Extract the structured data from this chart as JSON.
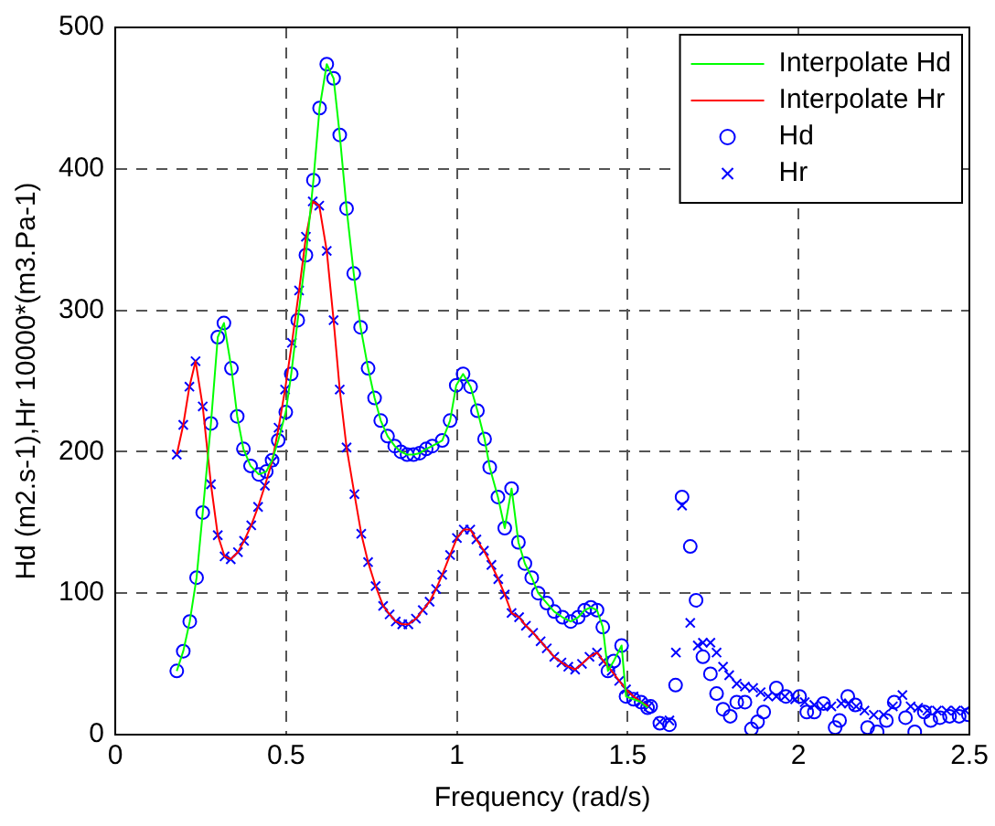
{
  "chart_data": {
    "type": "scatter",
    "xlabel": "Frequency (rad/s)",
    "ylabel": "Hd (m2.s-1),Hr 10000*(m3.Pa-1)",
    "xlim": [
      0,
      2.5
    ],
    "ylim": [
      0,
      500
    ],
    "xticks": [
      0,
      0.5,
      1,
      1.5,
      2,
      2.5
    ],
    "yticks": [
      0,
      100,
      200,
      300,
      400,
      500
    ],
    "grid": true,
    "legend": "top right",
    "series": [
      {
        "name": "Interpolate Hd",
        "type": "line",
        "marker": "none",
        "color": "#00ff00",
        "x": [
          0.18,
          0.199,
          0.218,
          0.238,
          0.256,
          0.28,
          0.3,
          0.318,
          0.34,
          0.357,
          0.375,
          0.396,
          0.42,
          0.442,
          0.459,
          0.477,
          0.499,
          0.515,
          0.534,
          0.558,
          0.58,
          0.598,
          0.619,
          0.639,
          0.657,
          0.677,
          0.698,
          0.718,
          0.74,
          0.759,
          0.777,
          0.797,
          0.818,
          0.836,
          0.854,
          0.873,
          0.891,
          0.91,
          0.928,
          0.957,
          0.98,
          0.998,
          1.018,
          1.04,
          1.06,
          1.081,
          1.096,
          1.12,
          1.14,
          1.16,
          1.18,
          1.199,
          1.219,
          1.238,
          1.263,
          1.285,
          1.309,
          1.333,
          1.355,
          1.374,
          1.392,
          1.41,
          1.427,
          1.442,
          1.459,
          1.482,
          1.495,
          1.517,
          1.539,
          1.558
        ],
        "values": [
          45,
          59,
          80,
          111,
          157,
          220,
          281,
          291,
          259,
          225,
          202,
          190,
          184,
          186,
          194,
          208,
          228,
          255,
          293,
          339,
          392,
          443,
          474,
          464,
          424,
          372,
          326,
          288,
          259,
          238,
          222,
          211,
          204,
          200,
          198,
          198,
          199,
          202,
          204,
          208,
          222,
          247,
          255,
          246,
          229,
          209,
          189,
          168,
          146,
          174,
          136,
          121,
          111,
          100,
          93,
          87,
          83,
          80,
          83,
          88,
          90,
          88,
          76,
          45,
          52,
          63,
          27,
          25,
          23,
          19
        ]
      },
      {
        "name": "Interpolate Hr",
        "type": "line",
        "marker": "none",
        "color": "#ff0000",
        "x": [
          0.18,
          0.199,
          0.217,
          0.235,
          0.256,
          0.28,
          0.3,
          0.32,
          0.338,
          0.359,
          0.377,
          0.398,
          0.418,
          0.438,
          0.459,
          0.478,
          0.497,
          0.517,
          0.538,
          0.558,
          0.578,
          0.597,
          0.619,
          0.639,
          0.657,
          0.677,
          0.7,
          0.72,
          0.74,
          0.762,
          0.784,
          0.803,
          0.821,
          0.84,
          0.858,
          0.88,
          0.9,
          0.92,
          0.939,
          0.957,
          0.98,
          1.0,
          1.02,
          1.039,
          1.057,
          1.079,
          1.101,
          1.121,
          1.14,
          1.16,
          1.182,
          1.202,
          1.223,
          1.245,
          1.263,
          1.285,
          1.306,
          1.326,
          1.346,
          1.366,
          1.388,
          1.41,
          1.429,
          1.453,
          1.475,
          1.495,
          1.517,
          1.539,
          1.561
        ],
        "values": [
          198,
          219,
          246,
          264,
          232,
          177,
          141,
          126,
          124,
          129,
          137,
          148,
          161,
          176,
          193,
          217,
          244,
          277,
          314,
          352,
          377,
          374,
          342,
          293,
          244,
          203,
          170,
          142,
          122,
          105,
          91,
          85,
          80,
          78,
          78,
          82,
          88,
          94,
          103,
          113,
          127,
          139,
          145,
          145,
          138,
          130,
          120,
          110,
          99,
          86,
          83,
          77,
          72,
          66,
          61,
          55,
          51,
          48,
          46,
          50,
          55,
          58,
          52,
          45,
          38,
          32,
          27,
          23,
          20
        ]
      },
      {
        "name": "Hd",
        "type": "scatter",
        "marker": "circle",
        "color": "#0000ff",
        "x": [
          0.18,
          0.199,
          0.218,
          0.238,
          0.256,
          0.28,
          0.3,
          0.318,
          0.34,
          0.357,
          0.375,
          0.396,
          0.42,
          0.442,
          0.459,
          0.477,
          0.499,
          0.515,
          0.534,
          0.558,
          0.58,
          0.598,
          0.619,
          0.639,
          0.657,
          0.677,
          0.698,
          0.718,
          0.74,
          0.759,
          0.777,
          0.797,
          0.818,
          0.836,
          0.854,
          0.873,
          0.891,
          0.91,
          0.928,
          0.957,
          0.98,
          0.998,
          1.018,
          1.04,
          1.06,
          1.081,
          1.096,
          1.12,
          1.14,
          1.16,
          1.18,
          1.199,
          1.219,
          1.238,
          1.263,
          1.285,
          1.309,
          1.333,
          1.355,
          1.374,
          1.392,
          1.41,
          1.427,
          1.442,
          1.459,
          1.482,
          1.495,
          1.517,
          1.539,
          1.558,
          1.567,
          1.594,
          1.622,
          1.64,
          1.659,
          1.683,
          1.7,
          1.72,
          1.742,
          1.76,
          1.779,
          1.8,
          1.819,
          1.843,
          1.862,
          1.88,
          1.898,
          1.935,
          1.963,
          2.003,
          2.024,
          2.046,
          2.073,
          2.107,
          2.12,
          2.144,
          2.166,
          2.202,
          2.23,
          2.257,
          2.28,
          2.313,
          2.34,
          2.368,
          2.387,
          2.414,
          2.442,
          2.47,
          2.497
        ],
        "values": [
          45,
          59,
          80,
          111,
          157,
          220,
          281,
          291,
          259,
          225,
          202,
          190,
          184,
          186,
          194,
          208,
          228,
          255,
          293,
          339,
          392,
          443,
          474,
          464,
          424,
          372,
          326,
          288,
          259,
          238,
          222,
          211,
          204,
          200,
          198,
          198,
          199,
          202,
          204,
          208,
          222,
          247,
          255,
          246,
          229,
          209,
          189,
          168,
          146,
          174,
          136,
          121,
          111,
          100,
          93,
          87,
          83,
          80,
          83,
          88,
          90,
          88,
          76,
          45,
          52,
          63,
          27,
          25,
          23,
          19,
          20,
          8,
          7,
          35,
          168,
          133,
          95,
          55,
          43,
          29,
          18,
          13,
          23,
          23,
          4,
          9,
          16,
          33,
          27,
          27,
          16,
          16,
          22,
          5,
          10,
          27,
          21,
          5,
          2,
          10,
          23,
          12,
          2,
          16,
          10,
          12,
          13,
          13,
          14
        ]
      },
      {
        "name": "Hr",
        "type": "scatter",
        "marker": "cross",
        "color": "#0000ff",
        "x": [
          0.18,
          0.199,
          0.217,
          0.235,
          0.256,
          0.28,
          0.3,
          0.32,
          0.338,
          0.359,
          0.377,
          0.398,
          0.418,
          0.438,
          0.459,
          0.478,
          0.497,
          0.517,
          0.538,
          0.558,
          0.578,
          0.597,
          0.619,
          0.639,
          0.657,
          0.677,
          0.7,
          0.72,
          0.74,
          0.762,
          0.784,
          0.803,
          0.821,
          0.84,
          0.858,
          0.88,
          0.9,
          0.92,
          0.939,
          0.957,
          0.98,
          1.0,
          1.02,
          1.039,
          1.057,
          1.079,
          1.101,
          1.121,
          1.14,
          1.16,
          1.182,
          1.202,
          1.223,
          1.245,
          1.263,
          1.285,
          1.306,
          1.326,
          1.346,
          1.366,
          1.388,
          1.41,
          1.429,
          1.453,
          1.475,
          1.495,
          1.517,
          1.539,
          1.561,
          1.594,
          1.622,
          1.641,
          1.659,
          1.683,
          1.705,
          1.72,
          1.742,
          1.76,
          1.779,
          1.797,
          1.819,
          1.843,
          1.867,
          1.889,
          1.911,
          1.935,
          1.96,
          1.99,
          2.018,
          2.046,
          2.073,
          2.096,
          2.125,
          2.147,
          2.169,
          2.193,
          2.22,
          2.249,
          2.276,
          2.304,
          2.328,
          2.35,
          2.377,
          2.405,
          2.433,
          2.46,
          2.488
        ],
        "values": [
          198,
          219,
          246,
          264,
          232,
          177,
          141,
          126,
          124,
          129,
          137,
          148,
          161,
          176,
          193,
          217,
          244,
          277,
          314,
          352,
          377,
          374,
          342,
          293,
          244,
          203,
          170,
          142,
          122,
          105,
          91,
          85,
          80,
          78,
          78,
          82,
          88,
          94,
          103,
          113,
          127,
          139,
          145,
          145,
          138,
          130,
          120,
          110,
          99,
          86,
          83,
          77,
          72,
          66,
          61,
          55,
          51,
          48,
          46,
          50,
          55,
          58,
          52,
          45,
          38,
          32,
          27,
          23,
          20,
          9,
          10,
          58,
          162,
          79,
          63,
          65,
          65,
          58,
          48,
          42,
          36,
          34,
          33,
          30,
          27,
          27,
          27,
          25,
          23,
          21,
          20,
          20,
          22,
          22,
          20,
          17,
          14,
          14,
          20,
          28,
          20,
          19,
          17,
          17,
          17,
          17,
          17
        ]
      }
    ]
  }
}
